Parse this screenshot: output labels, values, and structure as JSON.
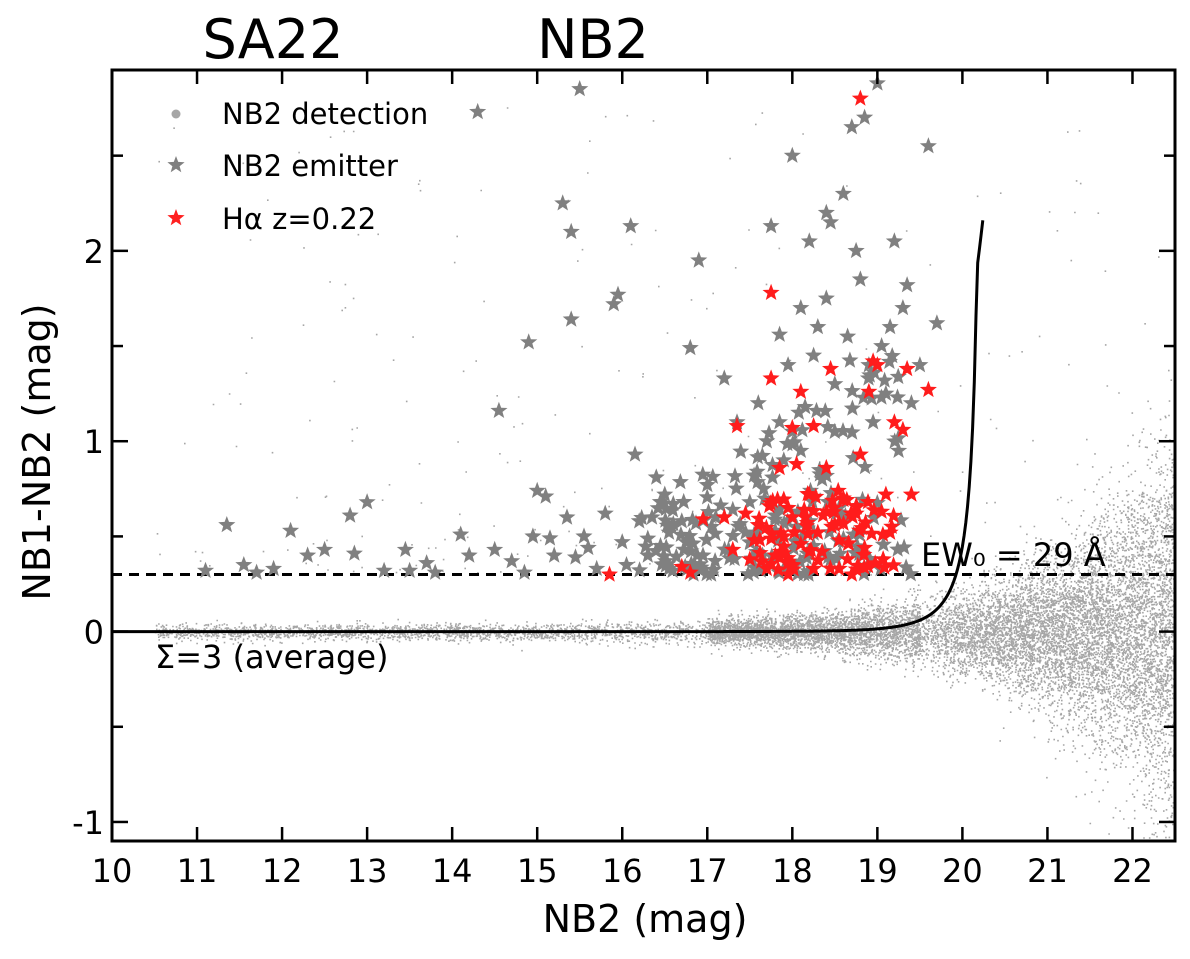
{
  "chart_data": {
    "type": "scatter",
    "title_left": "SA22",
    "title_right": "NB2",
    "xlabel": "NB2 (mag)",
    "ylabel": "NB1-NB2 (mag)",
    "xlim": [
      10,
      22.5
    ],
    "ylim": [
      -1.1,
      2.95
    ],
    "x_ticks": [
      10,
      11,
      12,
      13,
      14,
      15,
      16,
      17,
      18,
      19,
      20,
      21,
      22
    ],
    "y_ticks": [
      -1,
      0,
      1,
      2
    ],
    "x_tick_labels": [
      "10",
      "11",
      "12",
      "13",
      "14",
      "15",
      "16",
      "17",
      "18",
      "19",
      "20",
      "21",
      "22"
    ],
    "y_tick_labels": [
      "-1",
      "0",
      "1",
      "2"
    ],
    "legend": {
      "location": "upper-left",
      "entries": [
        {
          "label": "NB2 detection",
          "marker": "dot",
          "color": "#a6a6a6"
        },
        {
          "label": "NB2 emitter",
          "marker": "star",
          "color": "#808080"
        },
        {
          "label": "Hα z=0.22",
          "marker": "star",
          "color": "#ff2020"
        }
      ]
    },
    "annotations": {
      "ew_label": "EW₀ = 29 Å",
      "sigma_label": "Σ=3 (average)"
    },
    "ew_cut": {
      "y": 0.3,
      "style": "dashed"
    },
    "sigma_curve": {
      "label": "Σ=3 (average)",
      "x_start": 10,
      "x_asymptote": 20.25
    },
    "series": [
      {
        "name": "NB2 detection",
        "description": "dense cloud of faint detections centred on colour 0, widening toward faint magnitudes",
        "x_range": [
          10.5,
          22.5
        ],
        "y_center": 0.0
      },
      {
        "name": "NB2 emitter",
        "points": [
          [
            11.1,
            0.32
          ],
          [
            11.35,
            0.56
          ],
          [
            11.55,
            0.35
          ],
          [
            11.7,
            0.31
          ],
          [
            11.9,
            0.33
          ],
          [
            12.1,
            0.53
          ],
          [
            12.3,
            0.4
          ],
          [
            12.5,
            0.43
          ],
          [
            12.8,
            0.61
          ],
          [
            12.85,
            0.41
          ],
          [
            13.0,
            0.68
          ],
          [
            13.2,
            0.32
          ],
          [
            13.45,
            0.43
          ],
          [
            13.5,
            0.32
          ],
          [
            13.7,
            0.36
          ],
          [
            13.8,
            0.31
          ],
          [
            14.1,
            0.51
          ],
          [
            14.2,
            0.4
          ],
          [
            14.3,
            2.73
          ],
          [
            14.5,
            0.43
          ],
          [
            14.55,
            1.16
          ],
          [
            14.7,
            0.37
          ],
          [
            14.85,
            0.31
          ],
          [
            14.9,
            1.52
          ],
          [
            14.95,
            0.5
          ],
          [
            15.0,
            0.74
          ],
          [
            15.1,
            0.71
          ],
          [
            15.15,
            0.49
          ],
          [
            15.2,
            0.4
          ],
          [
            15.3,
            2.25
          ],
          [
            15.35,
            0.6
          ],
          [
            15.4,
            2.1
          ],
          [
            15.4,
            1.64
          ],
          [
            15.45,
            0.39
          ],
          [
            15.5,
            2.85
          ],
          [
            15.55,
            0.5
          ],
          [
            15.6,
            0.44
          ],
          [
            15.7,
            0.33
          ],
          [
            15.8,
            0.62
          ],
          [
            15.9,
            1.72
          ],
          [
            15.95,
            1.77
          ],
          [
            16.0,
            0.47
          ],
          [
            16.05,
            0.35
          ],
          [
            16.1,
            2.13
          ],
          [
            16.15,
            0.93
          ],
          [
            16.2,
            0.58
          ],
          [
            16.3,
            0.4
          ],
          [
            16.35,
            0.6
          ],
          [
            16.4,
            0.81
          ],
          [
            16.45,
            0.45
          ],
          [
            16.5,
            0.72
          ],
          [
            16.55,
            0.52
          ],
          [
            16.6,
            0.67
          ],
          [
            16.7,
            0.58
          ],
          [
            16.75,
            0.47
          ],
          [
            16.8,
            1.49
          ],
          [
            16.85,
            0.35
          ],
          [
            16.9,
            1.95
          ],
          [
            16.95,
            0.4
          ],
          [
            17.0,
            0.77
          ],
          [
            17.05,
            0.55
          ],
          [
            17.1,
            0.6
          ],
          [
            17.2,
            1.33
          ],
          [
            17.25,
            0.43
          ],
          [
            17.3,
            0.64
          ],
          [
            17.35,
            1.1
          ],
          [
            17.45,
            0.52
          ],
          [
            17.5,
            0.68
          ],
          [
            17.55,
            0.82
          ],
          [
            17.6,
            1.2
          ],
          [
            17.65,
            0.4
          ],
          [
            17.7,
            1.0
          ],
          [
            17.75,
            2.13
          ],
          [
            17.8,
            0.61
          ],
          [
            17.85,
            1.56
          ],
          [
            17.9,
            0.9
          ],
          [
            17.95,
            1.4
          ],
          [
            18.0,
            2.5
          ],
          [
            18.0,
            1.05
          ],
          [
            18.05,
            0.55
          ],
          [
            18.1,
            1.7
          ],
          [
            18.15,
            1.18
          ],
          [
            18.2,
            2.05
          ],
          [
            18.25,
            1.45
          ],
          [
            18.3,
            1.6
          ],
          [
            18.35,
            0.8
          ],
          [
            18.4,
            1.75
          ],
          [
            18.4,
            2.2
          ],
          [
            18.45,
            2.15
          ],
          [
            18.5,
            1.3
          ],
          [
            18.55,
            0.65
          ],
          [
            18.6,
            2.3
          ],
          [
            18.65,
            1.55
          ],
          [
            18.7,
            2.65
          ],
          [
            18.75,
            2.0
          ],
          [
            18.8,
            1.85
          ],
          [
            18.85,
            2.7
          ],
          [
            18.9,
            1.4
          ],
          [
            18.95,
            1.1
          ],
          [
            19.0,
            2.88
          ],
          [
            19.05,
            1.5
          ],
          [
            19.1,
            1.25
          ],
          [
            19.15,
            1.6
          ],
          [
            19.2,
            2.05
          ],
          [
            19.25,
            0.95
          ],
          [
            19.3,
            1.7
          ],
          [
            19.35,
            1.82
          ],
          [
            19.4,
            1.2
          ],
          [
            19.5,
            1.4
          ],
          [
            19.6,
            2.55
          ],
          [
            19.7,
            1.62
          ],
          [
            18.25,
            0.45
          ],
          [
            18.45,
            0.38
          ],
          [
            17.9,
            0.33
          ],
          [
            16.55,
            0.33
          ],
          [
            18.1,
            0.95
          ],
          [
            18.5,
            1.05
          ]
        ]
      },
      {
        "name": "Hα z=0.22",
        "points": [
          [
            15.85,
            0.3
          ],
          [
            16.7,
            0.34
          ],
          [
            16.8,
            0.31
          ],
          [
            16.95,
            0.59
          ],
          [
            17.2,
            0.6
          ],
          [
            17.3,
            0.43
          ],
          [
            17.35,
            1.08
          ],
          [
            17.45,
            0.62
          ],
          [
            17.5,
            0.38
          ],
          [
            17.55,
            0.48
          ],
          [
            17.6,
            0.56
          ],
          [
            17.7,
            0.33
          ],
          [
            17.75,
            1.78
          ],
          [
            17.75,
            1.33
          ],
          [
            17.8,
            0.4
          ],
          [
            17.85,
            0.86
          ],
          [
            17.9,
            0.5
          ],
          [
            17.95,
            0.65
          ],
          [
            18.0,
            1.07
          ],
          [
            18.0,
            0.35
          ],
          [
            18.05,
            0.88
          ],
          [
            18.1,
            1.26
          ],
          [
            18.1,
            0.46
          ],
          [
            18.15,
            0.6
          ],
          [
            18.2,
            0.72
          ],
          [
            18.25,
            1.08
          ],
          [
            18.25,
            0.33
          ],
          [
            18.3,
            0.52
          ],
          [
            18.35,
            0.42
          ],
          [
            18.4,
            0.86
          ],
          [
            18.4,
            0.63
          ],
          [
            18.45,
            1.38
          ],
          [
            18.5,
            0.56
          ],
          [
            18.55,
            0.48
          ],
          [
            18.6,
            0.7
          ],
          [
            18.65,
            0.38
          ],
          [
            18.7,
            0.3
          ],
          [
            18.75,
            0.62
          ],
          [
            18.8,
            2.8
          ],
          [
            18.8,
            0.93
          ],
          [
            18.85,
            0.44
          ],
          [
            18.9,
            1.26
          ],
          [
            18.95,
            1.42
          ],
          [
            19.0,
            1.4
          ],
          [
            19.05,
            0.63
          ],
          [
            19.1,
            0.72
          ],
          [
            19.15,
            0.52
          ],
          [
            19.2,
            1.1
          ],
          [
            19.3,
            1.06
          ],
          [
            19.35,
            1.38
          ],
          [
            19.4,
            0.72
          ],
          [
            19.6,
            1.27
          ],
          [
            18.2,
            0.42
          ],
          [
            17.95,
            0.3
          ],
          [
            18.55,
            0.33
          ],
          [
            18.0,
            0.6
          ]
        ]
      }
    ]
  },
  "colors": {
    "detection": "#a6a6a6",
    "emitter": "#808080",
    "halpha": "#ff1c1c",
    "axis": "#000000"
  }
}
